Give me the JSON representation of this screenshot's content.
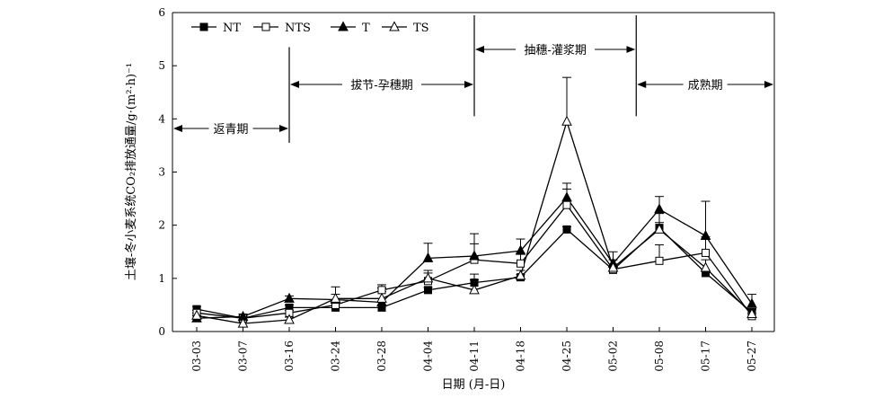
{
  "chart_data": {
    "type": "line",
    "title": "",
    "xlabel": "日期 (月-日)",
    "ylabel": "土壤-冬小麦系统CO₂排放通量/g·(m²·h)⁻¹",
    "ylim": [
      0,
      6
    ],
    "yticks": [
      "0",
      "1",
      "2",
      "3",
      "4",
      "5",
      "6"
    ],
    "grid": false,
    "legend_position": "top-left",
    "categories": [
      "03-03",
      "03-07",
      "03-16",
      "03-24",
      "03-28",
      "04-04",
      "04-11",
      "04-18",
      "04-25",
      "05-02",
      "05-08",
      "05-17",
      "05-27"
    ],
    "series": [
      {
        "name": "NT",
        "marker": "filled-square",
        "values": [
          0.42,
          0.25,
          0.45,
          0.45,
          0.45,
          0.78,
          0.92,
          1.02,
          1.92,
          1.16,
          1.95,
          1.1,
          0.36
        ],
        "error": [
          0.05,
          0.03,
          0.05,
          0.04,
          0.05,
          0.05,
          0.05,
          0.05,
          0.05,
          0.05,
          0.1,
          0.05,
          0.05
        ]
      },
      {
        "name": "NTS",
        "marker": "open-square",
        "values": [
          0.35,
          0.25,
          0.35,
          0.5,
          0.78,
          0.95,
          1.35,
          1.28,
          2.38,
          1.17,
          1.33,
          1.48,
          0.29
        ],
        "error": [
          0.05,
          0.05,
          0.05,
          0.05,
          0.1,
          0.2,
          0.3,
          0.2,
          0.3,
          0.1,
          0.3,
          0.3,
          0.05
        ]
      },
      {
        "name": "T",
        "marker": "filled-triangle",
        "values": [
          0.25,
          0.28,
          0.62,
          0.6,
          0.55,
          1.38,
          1.42,
          1.52,
          2.52,
          1.28,
          2.3,
          1.8,
          0.52
        ],
        "error": [
          0.05,
          0.05,
          0.05,
          0.1,
          0.2,
          0.28,
          0.42,
          0.22,
          0.27,
          0.22,
          0.24,
          0.65,
          0.18
        ]
      },
      {
        "name": "TS",
        "marker": "open-triangle",
        "values": [
          0.3,
          0.15,
          0.22,
          0.62,
          0.62,
          1.0,
          0.78,
          1.05,
          3.95,
          1.2,
          1.92,
          1.2,
          0.33
        ],
        "error": [
          0.05,
          0.05,
          0.05,
          0.22,
          0.2,
          0.1,
          0.3,
          0.1,
          0.83,
          0.15,
          0.3,
          0.15,
          0.1
        ]
      }
    ],
    "stage_periods": [
      {
        "label": "返青期",
        "start": "03-03",
        "end": "03-16",
        "divider_top": 3.85,
        "divider_bottom": 2.52
      },
      {
        "label": "拔节-孕穗期",
        "start": "03-16",
        "end": "04-11",
        "divider_top": 5.35,
        "divider_bottom": 3.55
      },
      {
        "label": "抽穗-灌浆期",
        "start": "04-11",
        "end": "05-02",
        "divider_top": 5.95,
        "divider_bottom": 4.05
      },
      {
        "label": "成熟期",
        "start": "05-02",
        "end": "05-27",
        "divider_top": 5.95,
        "divider_bottom": 4.05
      }
    ]
  }
}
